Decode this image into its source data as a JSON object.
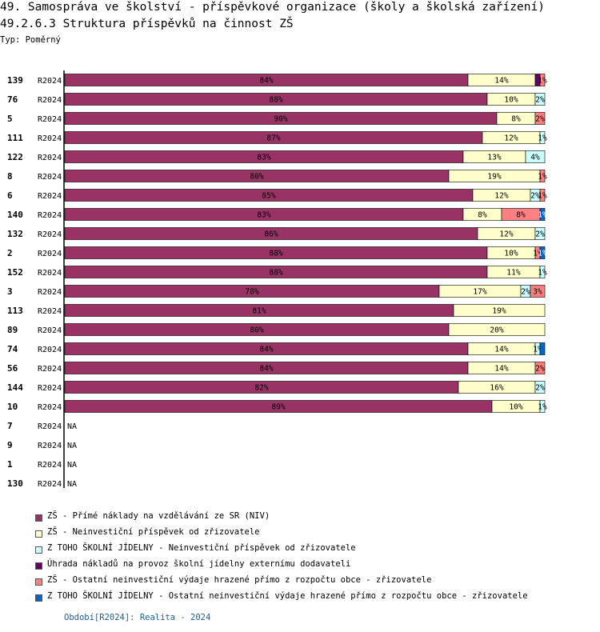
{
  "title": "49. Samospráva ve školství - příspěvkové organizace (školy a školská zařízení)",
  "subtitle": "49.2.6.3 Struktura příspěvků na činnost ZŠ",
  "type_label": "Typ: Poměrný",
  "footer": "Období[R2024]: Realita - 2024",
  "chart_data": {
    "type": "bar",
    "orientation": "horizontal",
    "stacked": true,
    "unit": "%",
    "xlim": [
      0,
      100
    ],
    "na_label": "NA",
    "series": [
      {
        "name": "ZŠ - Přímé náklady na vzdělávání ze SR (NIV)",
        "color": "#993366"
      },
      {
        "name": "ZŠ - Neinvestiční příspěvek od zřizovatele",
        "color": "#ffffcc"
      },
      {
        "name": "Z TOHO ŠKOLNÍ JÍDELNY - Neinvestiční příspěvek od zřizovatele",
        "color": "#ccffff"
      },
      {
        "name": "Úhrada nákladů na provoz školní jídelny externímu dodavateli",
        "color": "#660066"
      },
      {
        "name": "ZŠ - Ostatní neinvestiční výdaje hrazené přímo z rozpočtu obce - zřizovatele",
        "color": "#ff8080"
      },
      {
        "name": "Z TOHO ŠKOLNÍ JÍDELNY - Ostatní neinvestiční výdaje hrazené přímo z rozpočtu obce - zřizovatele",
        "color": "#0066cc"
      }
    ],
    "rows": [
      {
        "id": "139",
        "period": "R2024",
        "values": [
          84,
          14,
          0,
          1,
          1,
          0
        ],
        "labels": [
          "84%",
          "14%",
          "",
          "",
          "1%",
          ""
        ]
      },
      {
        "id": "76",
        "period": "R2024",
        "values": [
          88,
          10,
          2,
          0,
          0,
          0
        ],
        "labels": [
          "88%",
          "10%",
          "2%",
          "",
          "",
          ""
        ]
      },
      {
        "id": "5",
        "period": "R2024",
        "values": [
          90,
          8,
          0,
          0,
          2,
          0
        ],
        "labels": [
          "90%",
          "8%",
          "",
          "",
          "2%",
          ""
        ]
      },
      {
        "id": "111",
        "period": "R2024",
        "values": [
          87,
          12,
          1,
          0,
          0,
          0
        ],
        "labels": [
          "87%",
          "12%",
          "1%",
          "",
          "",
          ""
        ]
      },
      {
        "id": "122",
        "period": "R2024",
        "values": [
          83,
          13,
          4,
          0,
          0,
          0
        ],
        "labels": [
          "83%",
          "13%",
          "4%",
          "",
          "",
          ""
        ]
      },
      {
        "id": "8",
        "period": "R2024",
        "values": [
          80,
          19,
          0,
          0,
          1,
          0
        ],
        "labels": [
          "80%",
          "19%",
          "",
          "",
          "1%",
          ""
        ]
      },
      {
        "id": "6",
        "period": "R2024",
        "values": [
          85,
          12,
          2,
          0,
          1,
          0
        ],
        "labels": [
          "85%",
          "12%",
          "2%",
          "",
          "1%",
          ""
        ]
      },
      {
        "id": "140",
        "period": "R2024",
        "values": [
          83,
          8,
          0,
          0,
          8,
          1
        ],
        "labels": [
          "83%",
          "8%",
          "",
          "",
          "8%",
          "1%"
        ]
      },
      {
        "id": "132",
        "period": "R2024",
        "values": [
          86,
          12,
          2,
          0,
          0,
          0
        ],
        "labels": [
          "86%",
          "12%",
          "2%",
          "",
          "",
          ""
        ]
      },
      {
        "id": "2",
        "period": "R2024",
        "values": [
          88,
          10,
          0,
          0,
          1,
          1
        ],
        "labels": [
          "88%",
          "10%",
          "",
          "",
          "1%",
          "1%"
        ]
      },
      {
        "id": "152",
        "period": "R2024",
        "values": [
          88,
          11,
          1,
          0,
          0,
          0
        ],
        "labels": [
          "88%",
          "11%",
          "1%",
          "",
          "",
          ""
        ]
      },
      {
        "id": "3",
        "period": "R2024",
        "values": [
          78,
          17,
          2,
          0,
          3,
          0
        ],
        "labels": [
          "78%",
          "17%",
          "2%",
          "",
          "3%",
          ""
        ]
      },
      {
        "id": "113",
        "period": "R2024",
        "values": [
          81,
          19,
          0,
          0,
          0,
          0
        ],
        "labels": [
          "81%",
          "19%",
          "",
          "",
          "",
          ""
        ]
      },
      {
        "id": "89",
        "period": "R2024",
        "values": [
          80,
          20,
          0,
          0,
          0,
          0
        ],
        "labels": [
          "80%",
          "20%",
          "",
          "",
          "",
          ""
        ]
      },
      {
        "id": "74",
        "period": "R2024",
        "values": [
          84,
          14,
          1,
          0,
          0,
          1
        ],
        "labels": [
          "84%",
          "14%",
          "1%",
          "",
          "",
          ""
        ]
      },
      {
        "id": "56",
        "period": "R2024",
        "values": [
          84,
          14,
          0,
          0,
          2,
          0
        ],
        "labels": [
          "84%",
          "14%",
          "",
          "",
          "2%",
          ""
        ]
      },
      {
        "id": "144",
        "period": "R2024",
        "values": [
          82,
          16,
          2,
          0,
          0,
          0
        ],
        "labels": [
          "82%",
          "16%",
          "2%",
          "",
          "",
          ""
        ]
      },
      {
        "id": "10",
        "period": "R2024",
        "values": [
          89,
          10,
          1,
          0,
          0,
          0
        ],
        "labels": [
          "89%",
          "10%",
          "1%",
          "",
          "",
          ""
        ]
      },
      {
        "id": "7",
        "period": "R2024",
        "values": null,
        "labels": []
      },
      {
        "id": "9",
        "period": "R2024",
        "values": null,
        "labels": []
      },
      {
        "id": "1",
        "period": "R2024",
        "values": null,
        "labels": []
      },
      {
        "id": "130",
        "period": "R2024",
        "values": null,
        "labels": []
      }
    ]
  }
}
